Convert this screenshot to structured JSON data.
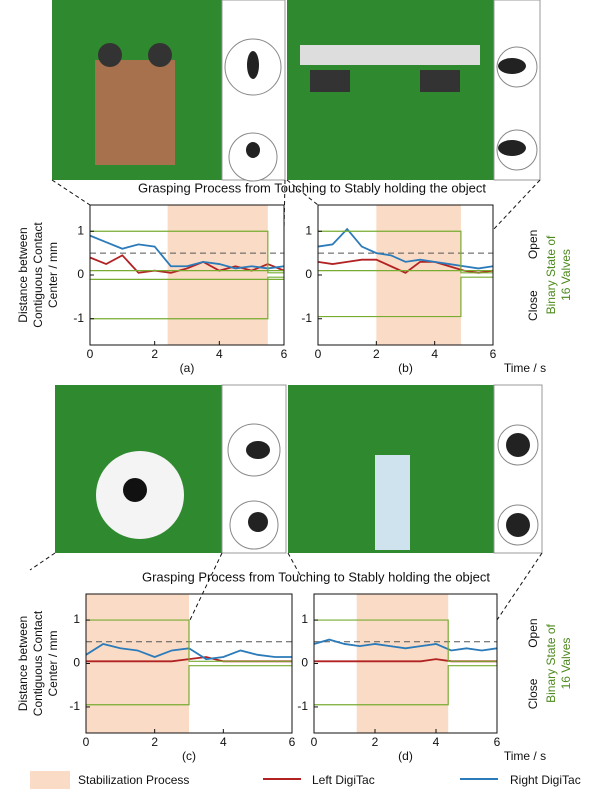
{
  "figure": {
    "captions": [
      "Grasping Process from Touching to Stably holding the object",
      "Grasping Process from Touching to Stably holding the object"
    ]
  },
  "chart_data": [
    {
      "type": "line",
      "panel": "(a)",
      "ylabel": [
        "Distance between",
        "Contiguous Contact",
        "Center / mm"
      ],
      "xlim": [
        0,
        6
      ],
      "ylim": [
        -1.6,
        1.6
      ],
      "xticks": [
        0,
        2,
        4,
        6
      ],
      "yticks": [
        -1,
        0,
        1
      ],
      "threshold": 0.5,
      "span": {
        "name": "Stabilization Process",
        "range": [
          2.4,
          5.5
        ],
        "color": "#fadcc6"
      },
      "series": [
        {
          "name": "Left DigiTac",
          "color": "#b22222",
          "x": [
            0,
            0.5,
            1,
            1.5,
            2,
            2.5,
            3,
            3.5,
            4,
            4.5,
            5,
            5.5,
            6
          ],
          "values": [
            0.4,
            0.25,
            0.45,
            0.05,
            0.1,
            0.05,
            0.15,
            0.3,
            0.1,
            0.2,
            0.1,
            0.25,
            0.1
          ]
        },
        {
          "name": "Right DigiTac",
          "color": "#2b7bba",
          "x": [
            0,
            0.5,
            1,
            1.5,
            2,
            2.5,
            3,
            3.5,
            4,
            4.5,
            5,
            5.5,
            6
          ],
          "values": [
            0.9,
            0.75,
            0.6,
            0.7,
            0.65,
            0.2,
            0.2,
            0.3,
            0.25,
            0.15,
            0.2,
            0.15,
            0.2
          ]
        },
        {
          "color": "#77ac30",
          "x": [
            0,
            5.5,
            5.5,
            6
          ],
          "values": [
            1,
            1,
            0.05,
            0.05
          ]
        },
        {
          "color": "#77ac30",
          "x": [
            0,
            5.5,
            5.5,
            6
          ],
          "values": [
            -1,
            -1,
            -0.05,
            -0.05
          ]
        },
        {
          "color": "#77ac30",
          "x": [
            0,
            6
          ],
          "values": [
            0.1,
            0.1
          ]
        },
        {
          "color": "#77ac30",
          "x": [
            0,
            6
          ],
          "values": [
            -0.1,
            -0.1
          ]
        }
      ]
    },
    {
      "type": "line",
      "panel": "(b)",
      "xlabel": "Time / s",
      "y2labels": [
        "Open",
        "Close"
      ],
      "y2label": [
        "Binary State of",
        "16 Valves"
      ],
      "xlim": [
        0,
        6
      ],
      "ylim": [
        -1.6,
        1.6
      ],
      "xticks": [
        0,
        2,
        4,
        6
      ],
      "yticks": [
        -1,
        0,
        1
      ],
      "threshold": 0.5,
      "span": {
        "range": [
          2,
          4.9
        ],
        "color": "#fadcc6"
      },
      "series": [
        {
          "color": "#b22222",
          "x": [
            0,
            0.5,
            1,
            1.5,
            2,
            2.5,
            3,
            3.5,
            4,
            4.5,
            5,
            5.5,
            6
          ],
          "values": [
            0.3,
            0.25,
            0.3,
            0.35,
            0.35,
            0.2,
            0.05,
            0.3,
            0.3,
            0.2,
            0.1,
            0.05,
            0.1
          ]
        },
        {
          "color": "#2b7bba",
          "x": [
            0,
            0.5,
            1,
            1.5,
            2,
            2.5,
            3,
            3.5,
            4,
            4.5,
            5,
            5.5,
            6
          ],
          "values": [
            0.65,
            0.7,
            1.05,
            0.65,
            0.5,
            0.45,
            0.3,
            0.35,
            0.3,
            0.25,
            0.2,
            0.15,
            0.2
          ]
        },
        {
          "color": "#77ac30",
          "x": [
            0,
            4.9,
            4.9,
            6
          ],
          "values": [
            1,
            1,
            0.05,
            0.05
          ]
        },
        {
          "color": "#77ac30",
          "x": [
            0,
            4.9,
            4.9,
            6
          ],
          "values": [
            -0.95,
            -0.95,
            -0.05,
            -0.05
          ]
        },
        {
          "color": "#77ac30",
          "x": [
            0,
            6
          ],
          "values": [
            0.1,
            0.1
          ]
        }
      ]
    },
    {
      "type": "line",
      "panel": "(c)",
      "ylabel": [
        "Distance between",
        "Contiguous Contact",
        "Center / mm"
      ],
      "xlim": [
        0,
        6
      ],
      "ylim": [
        -1.6,
        1.6
      ],
      "xticks": [
        0,
        2,
        4,
        6
      ],
      "yticks": [
        -1,
        0,
        1
      ],
      "threshold": 0.5,
      "span": {
        "range": [
          0,
          3
        ],
        "color": "#fadcc6"
      },
      "series": [
        {
          "color": "#b22222",
          "x": [
            0,
            0.5,
            1,
            1.5,
            2,
            2.5,
            3,
            3.5,
            4,
            4.5,
            5,
            5.5,
            6
          ],
          "values": [
            0.05,
            0.05,
            0.05,
            0.05,
            0.05,
            0.05,
            0.1,
            0.15,
            0.05,
            0.05,
            0.05,
            0.05,
            0.05
          ]
        },
        {
          "color": "#2b7bba",
          "x": [
            0,
            0.5,
            1,
            1.5,
            2,
            2.5,
            3,
            3.5,
            4,
            4.5,
            5,
            5.5,
            6
          ],
          "values": [
            0.2,
            0.45,
            0.35,
            0.3,
            0.15,
            0.3,
            0.35,
            0.1,
            0.15,
            0.3,
            0.2,
            0.15,
            0.15
          ]
        },
        {
          "color": "#77ac30",
          "x": [
            0,
            3,
            3,
            6
          ],
          "values": [
            1,
            1,
            0.05,
            0.05
          ]
        },
        {
          "color": "#77ac30",
          "x": [
            0,
            3,
            3,
            6
          ],
          "values": [
            -0.95,
            -0.95,
            -0.05,
            -0.05
          ]
        }
      ]
    },
    {
      "type": "line",
      "panel": "(d)",
      "xlabel": "Time / s",
      "y2labels": [
        "Open",
        "Close"
      ],
      "y2label": [
        "Binary State of",
        "16 Valves"
      ],
      "xlim": [
        0,
        6
      ],
      "ylim": [
        -1.6,
        1.6
      ],
      "xticks": [
        0,
        2,
        4,
        6
      ],
      "yticks": [
        -1,
        0,
        1
      ],
      "threshold": 0.5,
      "span": {
        "range": [
          1.4,
          4.4
        ],
        "color": "#fadcc6"
      },
      "series": [
        {
          "color": "#b22222",
          "x": [
            0,
            0.5,
            1,
            1.5,
            2,
            2.5,
            3,
            3.5,
            4,
            4.5,
            5,
            5.5,
            6
          ],
          "values": [
            0.05,
            0.05,
            0.05,
            0.05,
            0.05,
            0.05,
            0.05,
            0.05,
            0.1,
            0.05,
            0.05,
            0.05,
            0.05
          ]
        },
        {
          "color": "#2b7bba",
          "x": [
            0,
            0.5,
            1,
            1.5,
            2,
            2.5,
            3,
            3.5,
            4,
            4.5,
            5,
            5.5,
            6
          ],
          "values": [
            0.45,
            0.55,
            0.45,
            0.4,
            0.45,
            0.4,
            0.35,
            0.4,
            0.45,
            0.3,
            0.35,
            0.3,
            0.35
          ]
        },
        {
          "color": "#77ac30",
          "x": [
            0,
            4.4,
            4.4,
            6
          ],
          "values": [
            1,
            1,
            0.05,
            0.05
          ]
        },
        {
          "color": "#77ac30",
          "x": [
            0,
            4.4,
            4.4,
            6
          ],
          "values": [
            -0.95,
            -0.95,
            -0.05,
            -0.05
          ]
        }
      ]
    }
  ]
}
